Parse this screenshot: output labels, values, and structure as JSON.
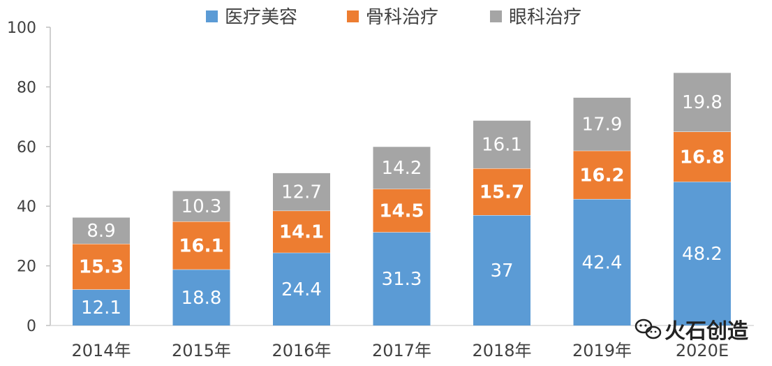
{
  "chart_data": {
    "type": "bar",
    "stacked": true,
    "categories": [
      "2014年",
      "2015年",
      "2016年",
      "2017年",
      "2018年",
      "2019年",
      "2020E"
    ],
    "series": [
      {
        "name": "医疗美容",
        "color": "#5b9bd5",
        "values": [
          12.1,
          18.8,
          24.4,
          31.3,
          37,
          42.4,
          48.2
        ]
      },
      {
        "name": "骨科治疗",
        "color": "#ed7d31",
        "values": [
          15.3,
          16.1,
          14.1,
          14.5,
          15.7,
          16.2,
          16.8
        ]
      },
      {
        "name": "眼科治疗",
        "color": "#a5a5a5",
        "values": [
          8.9,
          10.3,
          12.7,
          14.2,
          16.1,
          17.9,
          19.8
        ]
      }
    ],
    "ylim": [
      0,
      100
    ],
    "yticks": [
      0,
      20,
      40,
      60,
      80,
      100
    ],
    "legend_position": "top",
    "grid": false
  },
  "watermark": {
    "text": "火石创造",
    "icon": "wechat-icon"
  }
}
